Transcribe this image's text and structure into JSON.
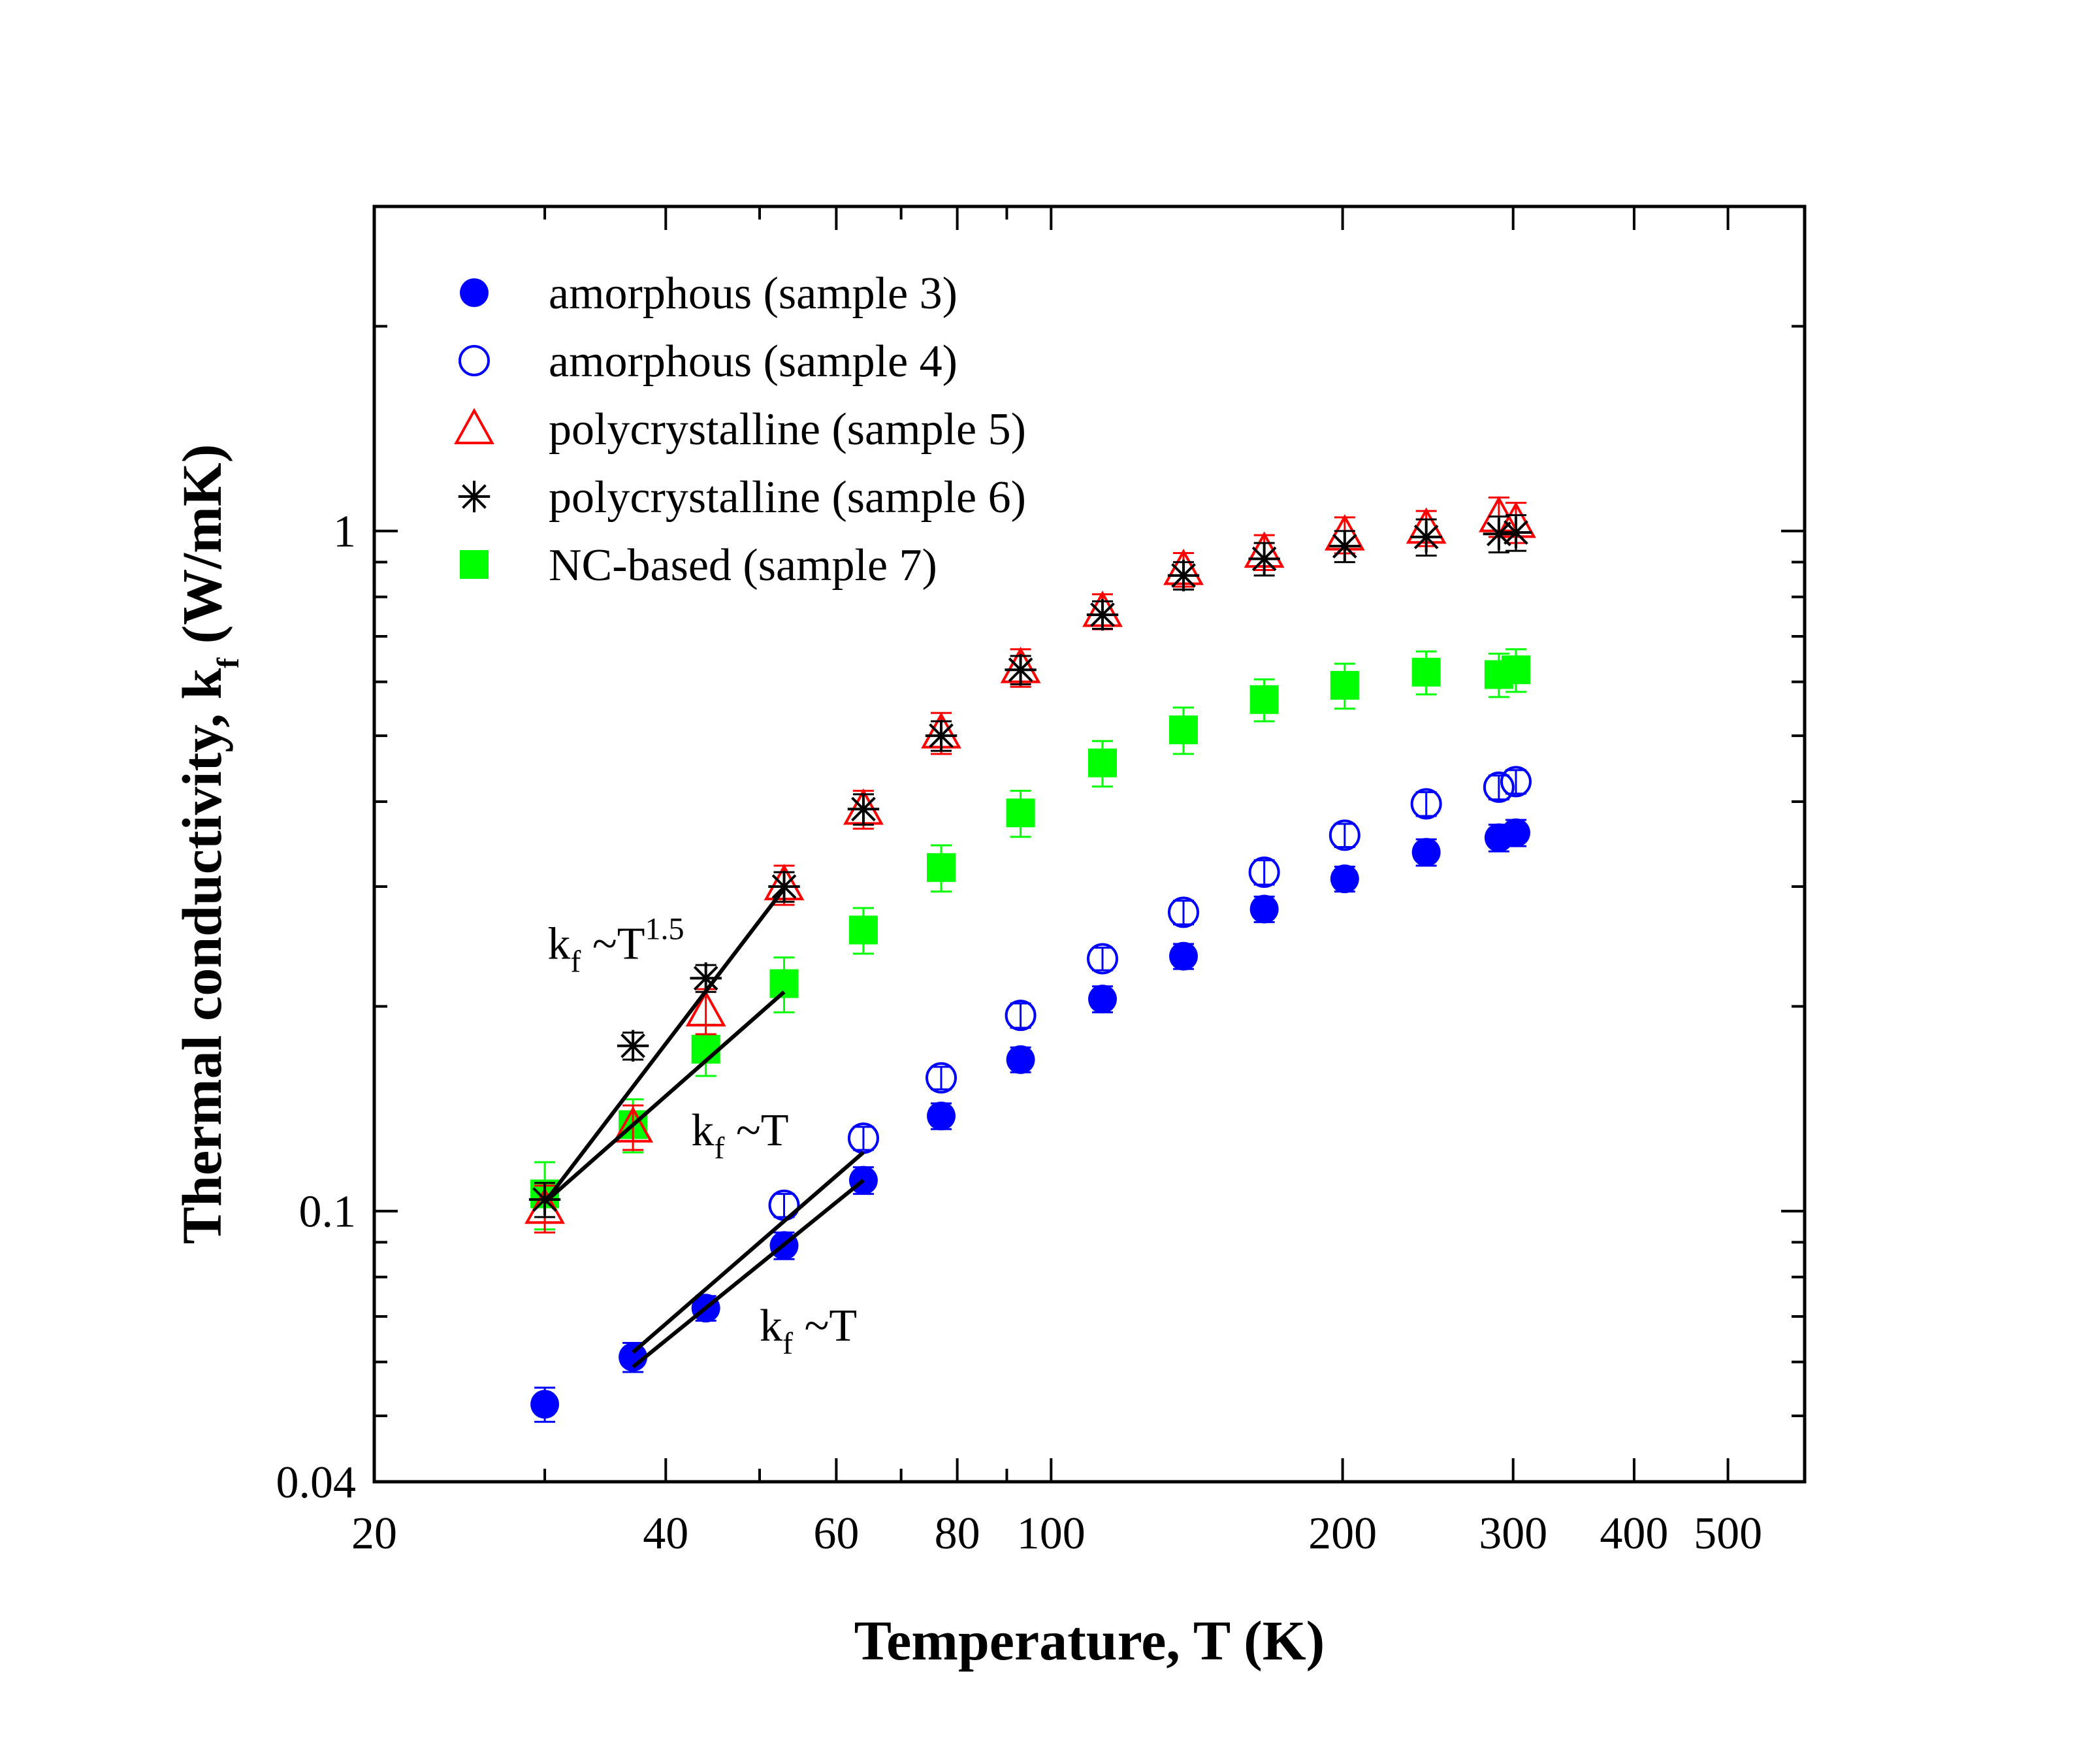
{
  "chart_data": {
    "type": "scatter",
    "title": "",
    "xlabel": "Temperature, T (K)",
    "ylabel": {
      "main": "Thermal conductivity, k",
      "sub": "f",
      "units": " (W/mK)"
    },
    "x_scale": "log",
    "y_scale": "log",
    "xlim": [
      20,
      600
    ],
    "ylim": [
      0.04,
      3.0
    ],
    "x_major_ticks": [
      20,
      40,
      60,
      80,
      100,
      200,
      300,
      400,
      500
    ],
    "x_tick_labels": [
      "20",
      "40",
      "60",
      "80",
      "100",
      "200",
      "300",
      "400",
      "500"
    ],
    "x_minor_ticks": [
      30,
      50,
      70,
      90,
      600
    ],
    "y_major_ticks": [
      0.04,
      0.1,
      1
    ],
    "y_tick_labels": [
      "0.04",
      "0.1",
      "1"
    ],
    "y_minor_ticks": [
      0.05,
      0.06,
      0.07,
      0.08,
      0.09,
      0.2,
      0.3,
      0.4,
      0.5,
      0.6,
      0.7,
      0.8,
      0.9,
      2,
      3
    ],
    "grid": false,
    "legend_position": "top-left",
    "series": [
      {
        "name": "amorphous (sample 3)",
        "marker": "filled-circle",
        "color": "#0000ff",
        "x": [
          30,
          37,
          44,
          53,
          64,
          77,
          93,
          113,
          137,
          166,
          201,
          244,
          290,
          302
        ],
        "y": [
          0.052,
          0.061,
          0.072,
          0.089,
          0.111,
          0.138,
          0.167,
          0.205,
          0.237,
          0.278,
          0.308,
          0.337,
          0.354,
          0.36
        ],
        "err": [
          0.003,
          0.003,
          0.003,
          0.004,
          0.005,
          0.006,
          0.007,
          0.009,
          0.01,
          0.012,
          0.013,
          0.015,
          0.016,
          0.016
        ]
      },
      {
        "name": "amorphous (sample 4)",
        "marker": "open-circle",
        "color": "#0000ff",
        "x": [
          53,
          64,
          77,
          93,
          113,
          137,
          166,
          201,
          244,
          290,
          302
        ],
        "y": [
          0.102,
          0.128,
          0.157,
          0.194,
          0.235,
          0.275,
          0.315,
          0.357,
          0.397,
          0.42,
          0.428
        ],
        "err": [
          0.004,
          0.005,
          0.006,
          0.008,
          0.009,
          0.011,
          0.013,
          0.014,
          0.016,
          0.017,
          0.017
        ]
      },
      {
        "name": "polycrystalline (sample 5)",
        "marker": "open-triangle",
        "color": "#ff0000",
        "x": [
          30,
          37,
          44,
          53,
          64,
          77,
          93,
          113,
          137,
          166,
          201,
          244,
          290,
          302
        ],
        "y": [
          0.101,
          0.133,
          0.197,
          0.302,
          0.39,
          0.505,
          0.63,
          0.762,
          0.878,
          0.931,
          0.987,
          1.01,
          1.05,
          1.03
        ],
        "err": [
          0.008,
          0.01,
          0.015,
          0.02,
          0.025,
          0.035,
          0.04,
          0.045,
          0.05,
          0.055,
          0.06,
          0.06,
          0.07,
          0.07
        ]
      },
      {
        "name": "polycrystalline (sample 6)",
        "marker": "asterisk",
        "color": "#000000",
        "x": [
          30,
          37,
          44,
          53,
          64,
          77,
          93,
          113,
          137,
          166,
          201,
          244,
          290,
          302
        ],
        "y": [
          0.104,
          0.175,
          0.22,
          0.3,
          0.39,
          0.5,
          0.625,
          0.753,
          0.86,
          0.91,
          0.95,
          0.98,
          0.99,
          0.995
        ],
        "err": [
          0.006,
          0.008,
          0.01,
          0.015,
          0.02,
          0.025,
          0.03,
          0.035,
          0.04,
          0.05,
          0.05,
          0.06,
          0.06,
          0.06
        ]
      },
      {
        "name": "NC-based (sample 7)",
        "marker": "filled-square",
        "color": "#00ff00",
        "x": [
          30,
          37,
          44,
          53,
          64,
          77,
          93,
          113,
          137,
          166,
          201,
          244,
          290,
          302
        ],
        "y": [
          0.106,
          0.134,
          0.173,
          0.216,
          0.259,
          0.32,
          0.385,
          0.456,
          0.51,
          0.565,
          0.593,
          0.62,
          0.615,
          0.625
        ],
        "err": [
          0.012,
          0.012,
          0.015,
          0.02,
          0.02,
          0.025,
          0.03,
          0.035,
          0.04,
          0.04,
          0.045,
          0.045,
          0.045,
          0.045
        ]
      }
    ],
    "fit_lines": [
      {
        "name": "fit-polycrystalline",
        "x": [
          30,
          53
        ],
        "y": [
          0.103,
          0.298
        ]
      },
      {
        "name": "fit-nc",
        "x": [
          30,
          53
        ],
        "y": [
          0.103,
          0.21
        ]
      },
      {
        "name": "fit-amorphous-4",
        "x": [
          37,
          64
        ],
        "y": [
          0.062,
          0.122
        ]
      },
      {
        "name": "fit-amorphous-3",
        "x": [
          37,
          64
        ],
        "y": [
          0.059,
          0.111
        ]
      }
    ],
    "annotations": [
      {
        "name": "annotation-t15",
        "prefix": "k",
        "sub": "f",
        "text": " ~T",
        "sup": "1.5",
        "x": 30.2,
        "y": 0.235
      },
      {
        "name": "annotation-t-upper",
        "prefix": "k",
        "sub": "f",
        "text": " ~T",
        "sup": "",
        "x": 42.5,
        "y": 0.125
      },
      {
        "name": "annotation-t-lower",
        "prefix": "k",
        "sub": "f",
        "text": " ~T",
        "sup": "",
        "x": 50.0,
        "y": 0.0645
      }
    ]
  }
}
